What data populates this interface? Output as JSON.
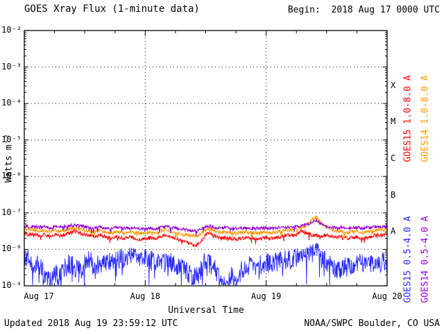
{
  "header": {
    "title": "GOES Xray Flux (1-minute data)",
    "begin_label": "Begin:  2018 Aug 17 0000 UTC"
  },
  "footer": {
    "updated": "Updated 2018 Aug 19 23:59:12 UTC",
    "credit": "NOAA/SWPC Boulder, CO USA"
  },
  "chart_data": {
    "type": "line",
    "title": "GOES Xray Flux (1-minute data)",
    "begin": "2018 Aug 17 0000 UTC",
    "xlabel": "Universal Time",
    "ylabel": "Watts m⁻²",
    "y_scale": "log",
    "y_exponent_range": [
      -2,
      -9
    ],
    "y_tick_labels": [
      "10⁻²",
      "10⁻³",
      "10⁻⁴",
      "10⁻⁵",
      "10⁻⁶",
      "10⁻⁷",
      "10⁻⁸",
      "10⁻⁹"
    ],
    "x_span_hours": 72,
    "x_ticks": [
      {
        "label": "Aug 17",
        "frac": 0,
        "dx": 21,
        "grid": false
      },
      {
        "label": "Aug 18",
        "frac": 0.3333,
        "dx": 0,
        "grid": true
      },
      {
        "label": "Aug 19",
        "frac": 0.6667,
        "dx": 0,
        "grid": true
      },
      {
        "label": "Aug 20",
        "frac": 1,
        "dx": 0,
        "grid": false
      }
    ],
    "flare_classes": [
      {
        "label": "X",
        "log_center": -3.5
      },
      {
        "label": "M",
        "log_center": -4.5
      },
      {
        "label": "C",
        "log_center": -5.5
      },
      {
        "label": "B",
        "log_center": -6.5
      },
      {
        "label": "A",
        "log_center": -7.5
      }
    ],
    "grid": {
      "horizontal": "dotted at each decade",
      "vertical": "dotted at day boundaries"
    },
    "legend_position": "right-rotated",
    "noise_seed": 20180819,
    "samples_per_hour": 12,
    "draw_order": [
      2,
      0,
      1,
      3
    ],
    "series": [
      {
        "name": "GOES15 1.0-8.0 A",
        "color": "#fd0002",
        "width": 1,
        "noise": 0.05,
        "base_log10_hourly": [
          -7.55,
          -7.6,
          -7.58,
          -7.62,
          -7.6,
          -7.65,
          -7.6,
          -7.62,
          -7.6,
          -7.55,
          -7.5,
          -7.55,
          -7.6,
          -7.62,
          -7.65,
          -7.6,
          -7.65,
          -7.7,
          -7.65,
          -7.68,
          -7.7,
          -7.65,
          -7.7,
          -7.72,
          -7.7,
          -7.68,
          -7.7,
          -7.65,
          -7.6,
          -7.65,
          -7.7,
          -7.75,
          -7.8,
          -7.85,
          -7.9,
          -7.8,
          -7.6,
          -7.55,
          -7.65,
          -7.7,
          -7.68,
          -7.7,
          -7.72,
          -7.7,
          -7.68,
          -7.7,
          -7.72,
          -7.7,
          -7.68,
          -7.7,
          -7.68,
          -7.65,
          -7.6,
          -7.62,
          -7.6,
          -7.5,
          -7.55,
          -7.6,
          -7.62,
          -7.65,
          -7.6,
          -7.65,
          -7.68,
          -7.65,
          -7.7,
          -7.68,
          -7.65,
          -7.7,
          -7.68,
          -7.65,
          -7.6,
          -7.62,
          -7.6
        ]
      },
      {
        "name": "GOES14 1.0-8.0 A",
        "color": "#ff9900",
        "width": 1,
        "noise": 0.05,
        "base_log10_hourly": [
          -7.45,
          -7.48,
          -7.46,
          -7.5,
          -7.48,
          -7.52,
          -7.48,
          -7.5,
          -7.46,
          -7.44,
          -7.42,
          -7.45,
          -7.48,
          -7.5,
          -7.52,
          -7.48,
          -7.52,
          -7.55,
          -7.52,
          -7.54,
          -7.55,
          -7.52,
          -7.55,
          -7.56,
          -7.55,
          -7.53,
          -7.55,
          -7.5,
          -7.46,
          -7.5,
          -7.54,
          -7.58,
          -7.6,
          -7.62,
          -7.65,
          -7.58,
          -7.46,
          -7.44,
          -7.5,
          -7.54,
          -7.52,
          -7.54,
          -7.55,
          -7.54,
          -7.52,
          -7.54,
          -7.55,
          -7.54,
          -7.52,
          -7.54,
          -7.52,
          -7.5,
          -7.48,
          -7.46,
          -7.44,
          -7.4,
          -7.35,
          -7.2,
          -7.1,
          -7.28,
          -7.4,
          -7.46,
          -7.5,
          -7.5,
          -7.54,
          -7.52,
          -7.5,
          -7.54,
          -7.52,
          -7.5,
          -7.46,
          -7.48,
          -7.46
        ]
      },
      {
        "name": "GOES15 0.5-4.0 A",
        "color": "#2626ff",
        "width": 0.9,
        "noise": 0.28,
        "base_log10_hourly": [
          -8.2,
          -8.3,
          -8.5,
          -8.4,
          -8.7,
          -8.9,
          -8.6,
          -8.8,
          -8.5,
          -8.4,
          -8.5,
          -8.6,
          -8.4,
          -8.3,
          -8.5,
          -8.4,
          -8.3,
          -8.35,
          -8.3,
          -8.25,
          -8.3,
          -8.2,
          -8.25,
          -8.3,
          -8.25,
          -8.3,
          -8.35,
          -8.3,
          -8.4,
          -8.35,
          -8.4,
          -8.5,
          -8.6,
          -8.7,
          -8.8,
          -8.6,
          -8.3,
          -8.4,
          -8.6,
          -8.8,
          -8.9,
          -8.7,
          -8.8,
          -8.6,
          -8.5,
          -8.4,
          -8.45,
          -8.4,
          -8.35,
          -8.4,
          -8.35,
          -8.3,
          -8.3,
          -8.25,
          -8.25,
          -8.25,
          -8.2,
          -8.1,
          -8.05,
          -8.25,
          -8.35,
          -8.45,
          -8.6,
          -8.5,
          -8.4,
          -8.45,
          -8.4,
          -8.35,
          -8.4,
          -8.35,
          -8.3,
          -8.35,
          -8.3
        ]
      },
      {
        "name": "GOES14 0.5-4.0 A",
        "color": "#9400d3",
        "width": 1,
        "noise": 0.045,
        "base_log10_hourly": [
          -7.36,
          -7.38,
          -7.37,
          -7.4,
          -7.38,
          -7.41,
          -7.38,
          -7.4,
          -7.37,
          -7.35,
          -7.33,
          -7.36,
          -7.38,
          -7.4,
          -7.41,
          -7.38,
          -7.41,
          -7.43,
          -7.41,
          -7.42,
          -7.43,
          -7.41,
          -7.43,
          -7.44,
          -7.43,
          -7.42,
          -7.43,
          -7.4,
          -7.37,
          -7.4,
          -7.42,
          -7.45,
          -7.46,
          -7.48,
          -7.5,
          -7.45,
          -7.37,
          -7.35,
          -7.4,
          -7.42,
          -7.41,
          -7.42,
          -7.43,
          -7.42,
          -7.41,
          -7.42,
          -7.43,
          -7.42,
          -7.41,
          -7.42,
          -7.41,
          -7.4,
          -7.39,
          -7.38,
          -7.37,
          -7.36,
          -7.33,
          -7.26,
          -7.22,
          -7.32,
          -7.38,
          -7.4,
          -7.41,
          -7.4,
          -7.42,
          -7.41,
          -7.4,
          -7.42,
          -7.41,
          -7.4,
          -7.37,
          -7.38,
          -7.37
        ]
      }
    ]
  }
}
